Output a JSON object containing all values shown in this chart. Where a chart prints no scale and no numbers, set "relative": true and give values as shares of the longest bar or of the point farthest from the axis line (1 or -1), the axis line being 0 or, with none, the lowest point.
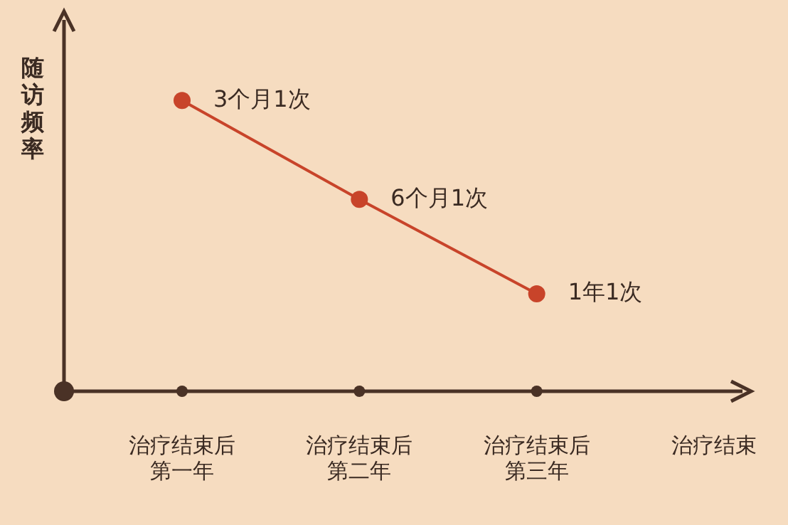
{
  "chart_data": {
    "type": "line",
    "ylabel": "随访频率",
    "categories": [
      "治疗结束后第一年",
      "治疗结束后第二年",
      "治疗结束后第三年",
      "治疗结束"
    ],
    "values": [
      1,
      0.66,
      0.335,
      null
    ],
    "color": "#c8442a",
    "relative": true,
    "marker": "circle",
    "line_style": "solid",
    "annotations": [
      {
        "text": "3个月1次",
        "x": "治疗结束后第一年",
        "y": 1
      },
      {
        "text": "6个月1次",
        "x": "治疗结束后第二年",
        "y": 0.66
      },
      {
        "text": "1年1次",
        "x": "治疗结束后第三年",
        "y": 0.335
      }
    ]
  }
}
